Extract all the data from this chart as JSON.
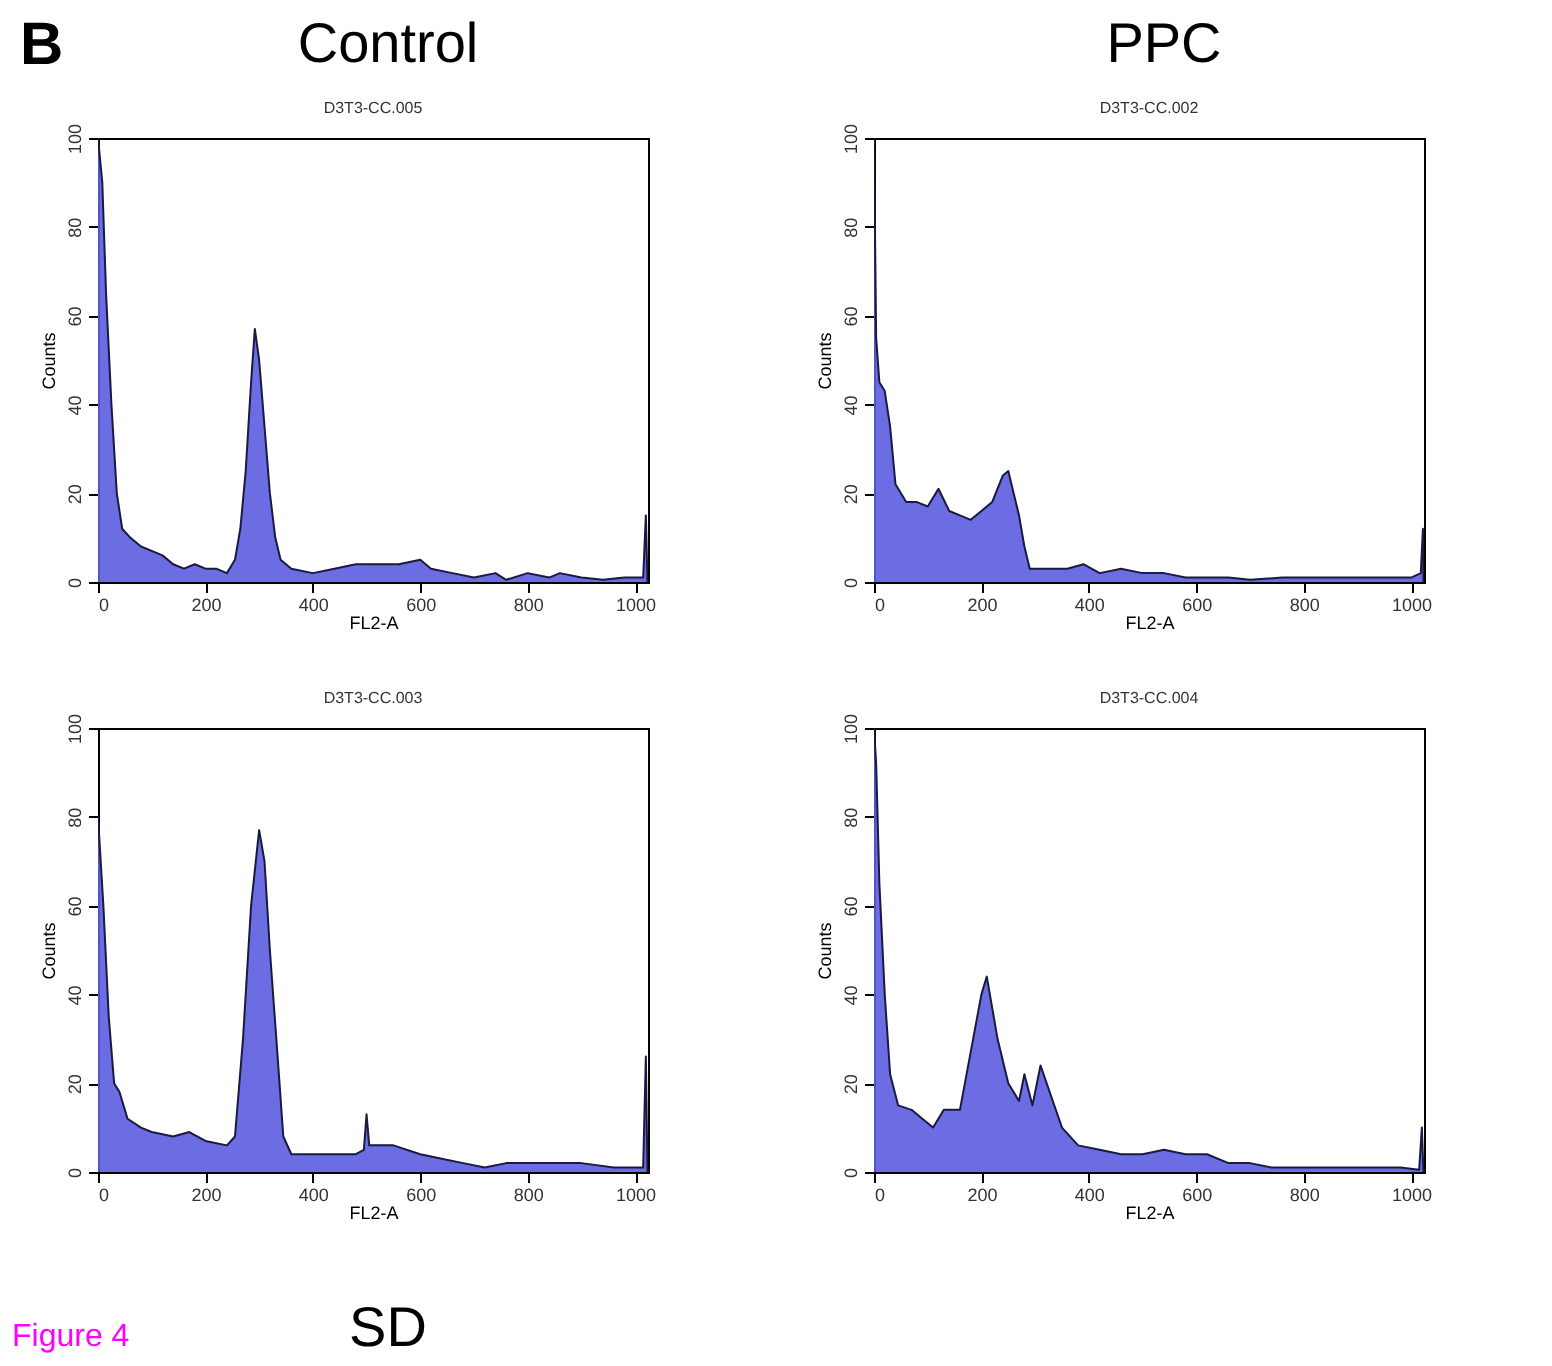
{
  "chart_data": [
    {
      "type": "area",
      "title": "Control",
      "subtitle": "D3T3-CC.005",
      "xlabel": "FL2-A",
      "ylabel": "Counts",
      "annotations": [
        "B"
      ],
      "xlim": [
        0,
        1024
      ],
      "xticks": [
        0,
        200,
        400,
        600,
        800,
        1000
      ],
      "ylim": [
        0,
        100
      ],
      "yticks": [
        0,
        20,
        40,
        60,
        80,
        100
      ],
      "grid": false,
      "series": [
        {
          "color": "#5c5ce0",
          "x": [
            0,
            8,
            15,
            25,
            35,
            45,
            60,
            80,
            100,
            120,
            140,
            160,
            180,
            200,
            220,
            240,
            255,
            265,
            275,
            285,
            292,
            300,
            310,
            320,
            330,
            340,
            360,
            400,
            440,
            480,
            520,
            560,
            600,
            620,
            660,
            700,
            740,
            760,
            800,
            840,
            860,
            900,
            940,
            980,
            1015,
            1020,
            1023
          ],
          "values": [
            100,
            90,
            65,
            40,
            20,
            12,
            10,
            8,
            7,
            6,
            4,
            3,
            4,
            3,
            3,
            2,
            5,
            12,
            25,
            45,
            57,
            50,
            35,
            20,
            10,
            5,
            3,
            2,
            3,
            4,
            4,
            4,
            5,
            3,
            2,
            1,
            2,
            0.5,
            2,
            1,
            2,
            1,
            0.5,
            1,
            1,
            15,
            0
          ]
        }
      ]
    },
    {
      "type": "area",
      "title": "PPC",
      "subtitle": "D3T3-CC.002",
      "xlabel": "FL2-A",
      "ylabel": "Counts",
      "xlim": [
        0,
        1024
      ],
      "xticks": [
        0,
        200,
        400,
        600,
        800,
        1000
      ],
      "ylim": [
        0,
        100
      ],
      "yticks": [
        0,
        20,
        40,
        60,
        80,
        100
      ],
      "grid": false,
      "series": [
        {
          "color": "#5c5ce0",
          "x": [
            0,
            4,
            10,
            20,
            30,
            40,
            60,
            80,
            100,
            120,
            140,
            160,
            180,
            200,
            220,
            240,
            250,
            260,
            270,
            280,
            290,
            320,
            360,
            390,
            420,
            460,
            500,
            540,
            580,
            620,
            660,
            700,
            760,
            800,
            860,
            920,
            1000,
            1018,
            1022,
            1023
          ],
          "values": [
            100,
            55,
            45,
            43,
            35,
            22,
            18,
            18,
            17,
            21,
            16,
            15,
            14,
            16,
            18,
            24,
            25,
            20,
            15,
            8,
            3,
            3,
            3,
            4,
            2,
            3,
            2,
            2,
            1,
            1,
            1,
            0.5,
            1,
            1,
            1,
            1,
            1,
            2,
            12,
            0
          ]
        }
      ]
    },
    {
      "type": "area",
      "title": "SD",
      "subtitle": "D3T3-CC.003",
      "xlabel": "FL2-A",
      "ylabel": "Counts",
      "annotations": [
        "Figure 4"
      ],
      "xlim": [
        0,
        1024
      ],
      "xticks": [
        0,
        200,
        400,
        600,
        800,
        1000
      ],
      "ylim": [
        0,
        100
      ],
      "yticks": [
        0,
        20,
        40,
        60,
        80,
        100
      ],
      "grid": false,
      "series": [
        {
          "color": "#5c5ce0",
          "x": [
            0,
            10,
            20,
            30,
            40,
            55,
            80,
            100,
            140,
            170,
            200,
            240,
            255,
            270,
            285,
            300,
            310,
            320,
            335,
            345,
            360,
            400,
            440,
            480,
            495,
            500,
            505,
            550,
            600,
            640,
            680,
            720,
            760,
            800,
            860,
            900,
            960,
            1015,
            1020,
            1023
          ],
          "values": [
            80,
            60,
            35,
            20,
            18,
            12,
            10,
            9,
            8,
            9,
            7,
            6,
            8,
            30,
            60,
            77,
            70,
            50,
            25,
            8,
            4,
            4,
            4,
            4,
            5,
            13,
            6,
            6,
            4,
            3,
            2,
            1,
            2,
            2,
            2,
            2,
            1,
            1,
            26,
            0
          ]
        }
      ]
    },
    {
      "type": "area",
      "subtitle": "D3T3-CC.004",
      "xlabel": "FL2-A",
      "ylabel": "Counts",
      "xlim": [
        0,
        1024
      ],
      "xticks": [
        0,
        200,
        400,
        600,
        800,
        1000
      ],
      "ylim": [
        0,
        100
      ],
      "yticks": [
        0,
        20,
        40,
        60,
        80,
        100
      ],
      "grid": false,
      "series": [
        {
          "color": "#5c5ce0",
          "x": [
            0,
            4,
            10,
            20,
            30,
            45,
            70,
            90,
            110,
            130,
            160,
            180,
            200,
            210,
            230,
            250,
            270,
            280,
            295,
            310,
            330,
            350,
            380,
            420,
            460,
            500,
            540,
            580,
            620,
            660,
            700,
            740,
            800,
            860,
            920,
            980,
            1015,
            1020,
            1023
          ],
          "values": [
            100,
            92,
            65,
            40,
            22,
            15,
            14,
            12,
            10,
            14,
            14,
            27,
            40,
            44,
            30,
            20,
            16,
            22,
            15,
            24,
            17,
            10,
            6,
            5,
            4,
            4,
            5,
            4,
            4,
            2,
            2,
            1,
            1,
            1,
            1,
            1,
            0.5,
            10,
            0
          ]
        }
      ]
    }
  ]
}
